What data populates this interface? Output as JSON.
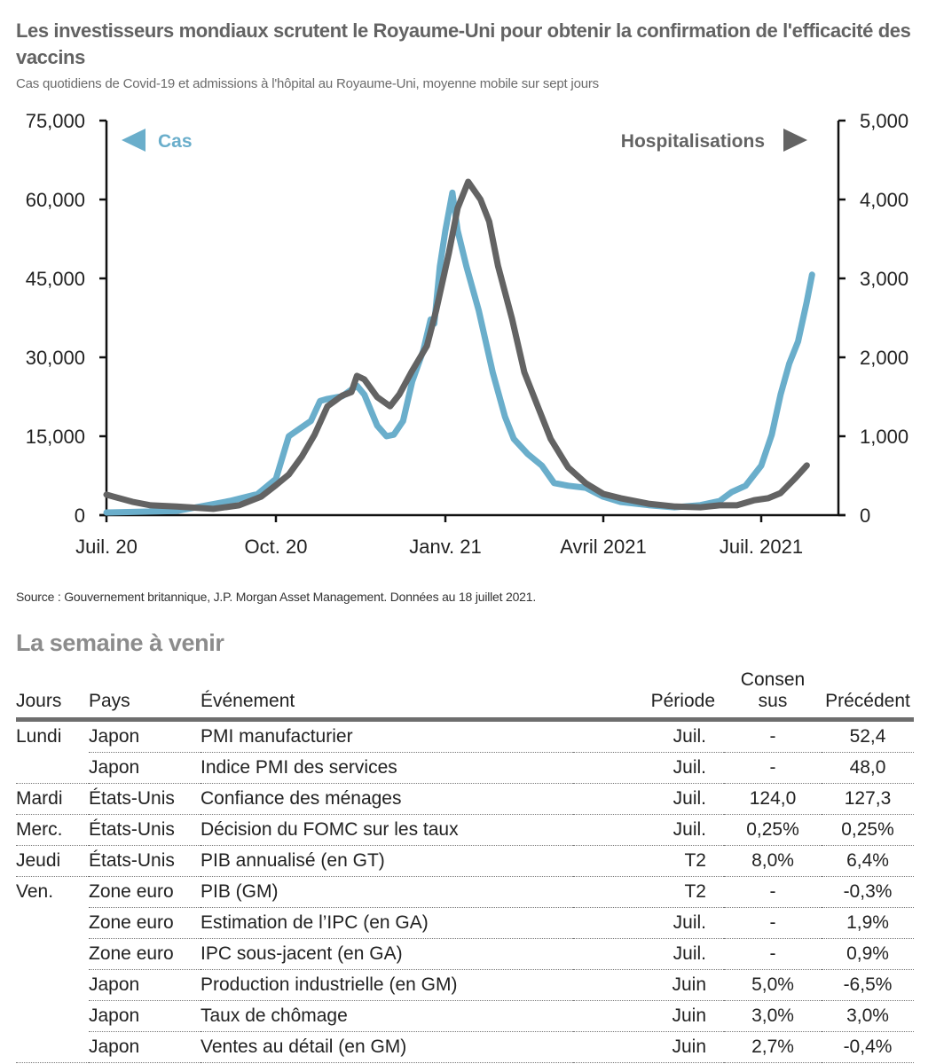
{
  "header": {
    "title": "Les investisseurs mondiaux scrutent le Royaume-Uni pour obtenir la confirmation de l'efficacité des vaccins",
    "subtitle": "Cas quotidiens de Covid-19 et admissions à l'hôpital au Royaume-Uni, moyenne mobile sur sept jours"
  },
  "chart_data": {
    "type": "line",
    "title": "Les investisseurs mondiaux scrutent le Royaume-Uni pour obtenir la confirmation de l'efficacité des vaccins",
    "subtitle": "Cas quotidiens de Covid-19 et admissions à l'hôpital au Royaume-Uni, moyenne mobile sur sept jours",
    "xlabel": "",
    "x_units": "days since 1 July 2020",
    "xlim": [
      0,
      409
    ],
    "x_ticks": [
      {
        "day": 0,
        "label": "Juil. 20"
      },
      {
        "day": 92,
        "label": "Oct. 20"
      },
      {
        "day": 184,
        "label": "Janv. 21"
      },
      {
        "day": 274,
        "label": "Avril 2021"
      },
      {
        "day": 365,
        "label": "Juil. 2021"
      }
    ],
    "y_left": {
      "label": "Cas",
      "ylim": [
        0,
        75000
      ],
      "ticks": [
        "0",
        "15,000",
        "30,000",
        "45,000",
        "60,000",
        "75,000"
      ],
      "tick_values": [
        0,
        15000,
        30000,
        45000,
        60000,
        75000
      ]
    },
    "y_right": {
      "label": "Hospitalisations",
      "ylim": [
        0,
        5000
      ],
      "ticks": [
        "0",
        "1,000",
        "2,000",
        "3,000",
        "4,000",
        "5,000"
      ],
      "tick_values": [
        0,
        1000,
        2000,
        3000,
        4000,
        5000
      ]
    },
    "grid": false,
    "legend": [
      {
        "label": "Cas",
        "axis": "left",
        "arrow": "left",
        "placement": "top-left"
      },
      {
        "label": "Hospitalisations",
        "axis": "right",
        "arrow": "right",
        "placement": "top-right"
      }
    ],
    "colors": {
      "cases": "#6aaecb",
      "hosp": "#636363"
    },
    "series": [
      {
        "name": "Cas",
        "axis": "left",
        "x": [
          0,
          38,
          67,
          82,
          92,
          99,
          106,
          111,
          116,
          120,
          128,
          136,
          140,
          147,
          152,
          156,
          161,
          166,
          172,
          176,
          178,
          181,
          184,
          188,
          191,
          196,
          203,
          211,
          218,
          223,
          231,
          239,
          246,
          254,
          264,
          274,
          284,
          300,
          315,
          330,
          341,
          348,
          356,
          365,
          371,
          376,
          381,
          386,
          391,
          394
        ],
        "values": [
          500,
          800,
          2700,
          4000,
          6900,
          15000,
          16700,
          17900,
          21700,
          22100,
          22600,
          24600,
          22900,
          17000,
          15000,
          15300,
          17900,
          25400,
          31300,
          37200,
          36400,
          47300,
          54100,
          61300,
          54100,
          47300,
          38900,
          27100,
          18700,
          14500,
          11600,
          9400,
          6100,
          5600,
          5200,
          3500,
          2500,
          1900,
          1500,
          1900,
          2700,
          4400,
          5600,
          9400,
          15300,
          22900,
          28800,
          33000,
          40600,
          45700
        ]
      },
      {
        "name": "Hospitalisations",
        "axis": "right",
        "x": [
          0,
          14,
          24,
          38,
          58,
          72,
          84,
          92,
          99,
          106,
          113,
          120,
          128,
          133,
          136,
          140,
          147,
          154,
          159,
          166,
          174,
          179,
          186,
          191,
          197,
          204,
          209,
          214,
          222,
          229,
          237,
          244,
          254,
          264,
          274,
          284,
          300,
          315,
          330,
          341,
          351,
          361,
          369,
          376,
          384,
          391
        ],
        "values": [
          260,
          170,
          125,
          110,
          80,
          125,
          235,
          380,
          515,
          740,
          1020,
          1380,
          1515,
          1560,
          1765,
          1720,
          1495,
          1380,
          1530,
          1830,
          2145,
          2595,
          3325,
          3890,
          4225,
          4000,
          3720,
          3160,
          2485,
          1810,
          1360,
          965,
          605,
          405,
          270,
          215,
          145,
          110,
          100,
          125,
          125,
          190,
          215,
          280,
          460,
          630
        ]
      }
    ]
  },
  "source": "Source : Gouvernement britannique, J.P. Morgan Asset Management. Données au 18 juillet 2021.",
  "calendar": {
    "title": "La semaine à venir",
    "headers": {
      "jours": "Jours",
      "pays": "Pays",
      "evenement": "Événement",
      "periode": "Période",
      "consensus_line1": "Consen",
      "consensus_line2": "sus",
      "precedent": "Précédent"
    },
    "rows": [
      {
        "jour": "Lundi",
        "pays": "Japon",
        "evenement": "PMI manufacturier",
        "periode": "Juil.",
        "consensus": "-",
        "precedent": "52,4"
      },
      {
        "jour": "",
        "pays": "Japon",
        "evenement": "Indice PMI des services",
        "periode": "Juil.",
        "consensus": "-",
        "precedent": "48,0"
      },
      {
        "jour": "Mardi",
        "pays": "États-Unis",
        "evenement": "Confiance des ménages",
        "periode": "Juil.",
        "consensus": "124,0",
        "precedent": "127,3"
      },
      {
        "jour": "Merc.",
        "pays": "États-Unis",
        "evenement": "Décision du FOMC sur les taux",
        "periode": "Juil.",
        "consensus": "0,25%",
        "precedent": "0,25%"
      },
      {
        "jour": "Jeudi",
        "pays": "États-Unis",
        "evenement": "PIB annualisé (en GT)",
        "periode": "T2",
        "consensus": "8,0%",
        "precedent": "6,4%"
      },
      {
        "jour": "Ven.",
        "pays": "Zone euro",
        "evenement": "PIB (GM)",
        "periode": "T2",
        "consensus": "-",
        "precedent": "-0,3%"
      },
      {
        "jour": "",
        "pays": "Zone euro",
        "evenement": "Estimation de l’IPC (en GA)",
        "periode": "Juil.",
        "consensus": "-",
        "precedent": "1,9%"
      },
      {
        "jour": "",
        "pays": "Zone euro",
        "evenement": "IPC sous-jacent (en GA)",
        "periode": "Juil.",
        "consensus": "-",
        "precedent": "0,9%"
      },
      {
        "jour": "",
        "pays": "Japon",
        "evenement": "Production industrielle (en GM)",
        "periode": "Juin",
        "consensus": "5,0%",
        "precedent": "-6,5%"
      },
      {
        "jour": "",
        "pays": "Japon",
        "evenement": "Taux de chômage",
        "periode": "Juin",
        "consensus": "3,0%",
        "precedent": "3,0%"
      },
      {
        "jour": "",
        "pays": "Japon",
        "evenement": "Ventes au détail (en GM)",
        "periode": "Juin",
        "consensus": "2,7%",
        "precedent": "-0,4%"
      }
    ]
  }
}
